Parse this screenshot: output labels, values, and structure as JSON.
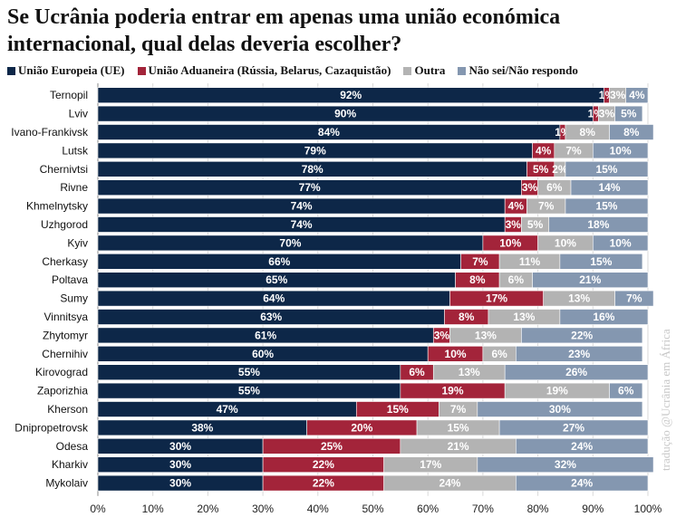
{
  "chart_data": {
    "type": "bar",
    "orientation": "horizontal",
    "stacked": true,
    "title": "Se Ucrânia poderia entrar em apenas uma união económica internacional, qual delas deveria escolher?",
    "legend_position": "top",
    "xlim": [
      0,
      100
    ],
    "x_ticks": [
      "0%",
      "10%",
      "20%",
      "30%",
      "40%",
      "50%",
      "60%",
      "70%",
      "80%",
      "90%",
      "100%"
    ],
    "grid": true,
    "categories": [
      "Ternopil",
      "Lviv",
      "Ivano-Frankivsk",
      "Lutsk",
      "Chernivtsi",
      "Rivne",
      "Khmelnytsky",
      "Uzhgorod",
      "Kyiv",
      "Cherkasy",
      "Poltava",
      "Sumy",
      "Vinnitsya",
      "Zhytomyr",
      "Chernihiv",
      "Kirovograd",
      "Zaporizhia",
      "Kherson",
      "Dnipropetrovsk",
      "Odesa",
      "Kharkiv",
      "Mykolaiv"
    ],
    "series": [
      {
        "name": "União Europeia (UE)",
        "color": "#0d2748",
        "values": [
          92,
          90,
          84,
          79,
          78,
          77,
          74,
          74,
          70,
          66,
          65,
          64,
          63,
          61,
          60,
          55,
          55,
          47,
          38,
          30,
          30,
          30
        ]
      },
      {
        "name": "União Aduaneira (Rússia, Belarus, Cazaquistão)",
        "color": "#a3243a",
        "values": [
          1,
          1,
          1,
          4,
          5,
          3,
          4,
          3,
          10,
          7,
          8,
          17,
          8,
          3,
          10,
          6,
          19,
          15,
          20,
          25,
          22,
          22
        ]
      },
      {
        "name": "Outra",
        "color": "#b3b3b3",
        "values": [
          3,
          3,
          8,
          7,
          2,
          6,
          7,
          5,
          10,
          11,
          6,
          13,
          13,
          13,
          6,
          13,
          19,
          7,
          15,
          21,
          17,
          24
        ]
      },
      {
        "name": "Não sei/Não respondo",
        "color": "#8497b0",
        "values": [
          4,
          5,
          8,
          10,
          15,
          14,
          15,
          18,
          10,
          15,
          21,
          7,
          16,
          22,
          23,
          26,
          6,
          30,
          27,
          24,
          32,
          24
        ]
      }
    ]
  },
  "credit": "tradução @Ucrânia em África"
}
